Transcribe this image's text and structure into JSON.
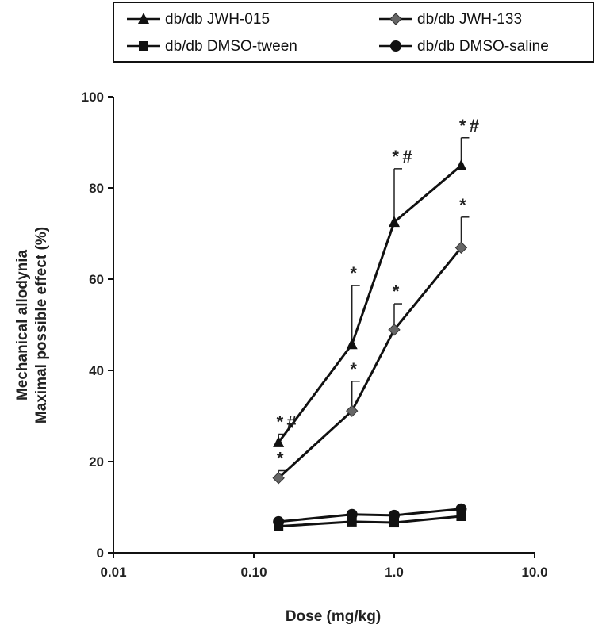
{
  "chart_data": {
    "type": "line",
    "xscale": "log",
    "xlabel": "Dose (mg/kg)",
    "ylabel_line1": "Mechanical allodynia",
    "ylabel_line2": "Maximal possible effect (%)",
    "xlim": [
      0.01,
      10
    ],
    "ylim": [
      0,
      100
    ],
    "xticks": [
      "0.01",
      "0.10",
      "1.0",
      "10.0"
    ],
    "xtick_values": [
      0.01,
      0.1,
      1,
      10
    ],
    "yticks": [
      "0",
      "20",
      "40",
      "60",
      "80",
      "100"
    ],
    "ytick_values": [
      0,
      20,
      40,
      60,
      80,
      100
    ],
    "legend_placement": "top",
    "x": [
      0.15,
      0.5,
      1.0,
      3.0
    ],
    "series": [
      {
        "name": "db/db JWH-015",
        "marker": "triangle",
        "color": "#111111",
        "values": [
          24.2,
          45.7,
          72.5,
          84.9
        ],
        "error_upper": [
          26.0,
          58.6,
          84.2,
          91.0
        ],
        "annotations": [
          "* #",
          "*",
          "* #",
          "* #"
        ]
      },
      {
        "name": "db/db JWH-133",
        "marker": "diamond",
        "color": "#666666",
        "values": [
          16.4,
          31.1,
          48.9,
          66.9
        ],
        "error_upper": [
          18.0,
          37.6,
          54.6,
          73.6
        ],
        "annotations": [
          "*",
          "*",
          "*",
          "*"
        ]
      },
      {
        "name": "db/db DMSO-tween",
        "marker": "square",
        "color": "#111111",
        "values": [
          5.8,
          6.8,
          6.6,
          8.0
        ],
        "error_upper": [],
        "annotations": []
      },
      {
        "name": "db/db DMSO-saline",
        "marker": "circle",
        "color": "#111111",
        "values": [
          6.8,
          8.4,
          8.2,
          9.6
        ],
        "error_upper": [],
        "annotations": []
      }
    ]
  }
}
